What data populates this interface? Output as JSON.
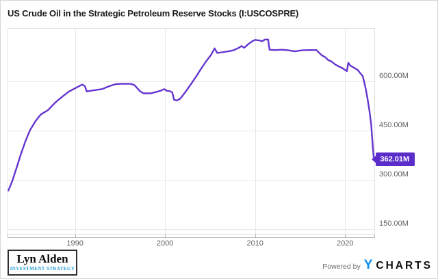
{
  "header": {
    "title": "US Crude Oil in the Strategic Petroleum Reserve Stocks (I:USCOSPRE)"
  },
  "chart_data": {
    "type": "line",
    "title": "US Crude Oil in the Strategic Petroleum Reserve Stocks (I:USCOSPRE)",
    "series_name": "US Crude Oil in the Strategic Petroleum Reserve Stocks",
    "unit": "barrels (millions)",
    "x": [
      1982.6,
      1983.0,
      1983.5,
      1984.0,
      1984.5,
      1985.0,
      1985.6,
      1986.2,
      1987.0,
      1987.8,
      1988.5,
      1989.3,
      1990.1,
      1990.8,
      1991.1,
      1991.3,
      1992.0,
      1993.0,
      1993.8,
      1994.5,
      1995.2,
      1996.2,
      1996.6,
      1997.2,
      1997.6,
      1998.4,
      1999.0,
      1999.6,
      1999.9,
      2000.2,
      2000.5,
      2000.8,
      2001.0,
      2001.3,
      2001.7,
      2002.2,
      2002.8,
      2003.4,
      2004.0,
      2004.6,
      2005.1,
      2005.5,
      2005.8,
      2006.3,
      2007.0,
      2007.6,
      2008.2,
      2008.5,
      2008.8,
      2009.2,
      2009.7,
      2010.0,
      2010.5,
      2010.8,
      2011.1,
      2011.45,
      2011.6,
      2012.2,
      2013.0,
      2013.7,
      2014.4,
      2015.2,
      2016.0,
      2016.8,
      2017.1,
      2017.4,
      2017.8,
      2018.1,
      2018.5,
      2018.9,
      2019.3,
      2019.7,
      2020.0,
      2020.2,
      2020.35,
      2020.6,
      2021.0,
      2021.4,
      2021.7,
      2021.95,
      2022.1,
      2022.3,
      2022.5,
      2022.7,
      2022.9,
      2023.0,
      2023.1,
      2023.2
    ],
    "y": [
      267,
      294,
      336,
      379,
      418,
      451,
      478,
      499,
      512,
      535,
      551,
      568,
      580,
      590,
      585,
      569,
      572,
      576,
      585,
      591,
      592,
      592,
      588,
      570,
      563,
      563,
      567,
      572,
      576,
      571,
      570,
      566,
      544,
      541,
      547,
      565,
      588,
      612,
      638,
      662,
      680,
      700,
      686,
      688,
      691,
      694,
      702,
      707,
      702,
      712,
      722,
      726,
      724,
      722,
      727,
      727,
      696,
      695,
      696,
      694,
      691,
      694,
      695,
      695,
      687,
      679,
      673,
      665,
      660,
      651,
      645,
      640,
      634,
      631,
      656,
      647,
      641,
      634,
      624,
      616,
      600,
      576,
      546,
      510,
      468,
      430,
      393,
      362.01
    ],
    "last_value_label": "362.01M",
    "x_ticks": [
      1990,
      2000,
      2010,
      2020
    ],
    "x_tick_labels": [
      "1990",
      "2000",
      "2010",
      "2020"
    ],
    "y_ticks": [
      600,
      450,
      300,
      150
    ],
    "y_tick_labels": [
      "600.00M",
      "450.00M",
      "300.00M",
      "150.00M"
    ],
    "xlim": [
      1982.5,
      2023.25
    ],
    "ylim": [
      135,
      762
    ],
    "grid": true,
    "legend": "none",
    "line_color": "#6435cf",
    "badge_color": "#5a2dcb",
    "grid_color": "#e8e8e8",
    "border_color": "#e0e0e0",
    "axis_line_color": "#b3b3b3",
    "tick_label_color": "#5d5e60"
  },
  "footer": {
    "logo_line1": "Lyn Alden",
    "logo_line2": "INVESTMENT STRATEGY",
    "powered_by": "Powered by",
    "ycharts_y": "Y",
    "ycharts_rest": "CHARTS"
  }
}
